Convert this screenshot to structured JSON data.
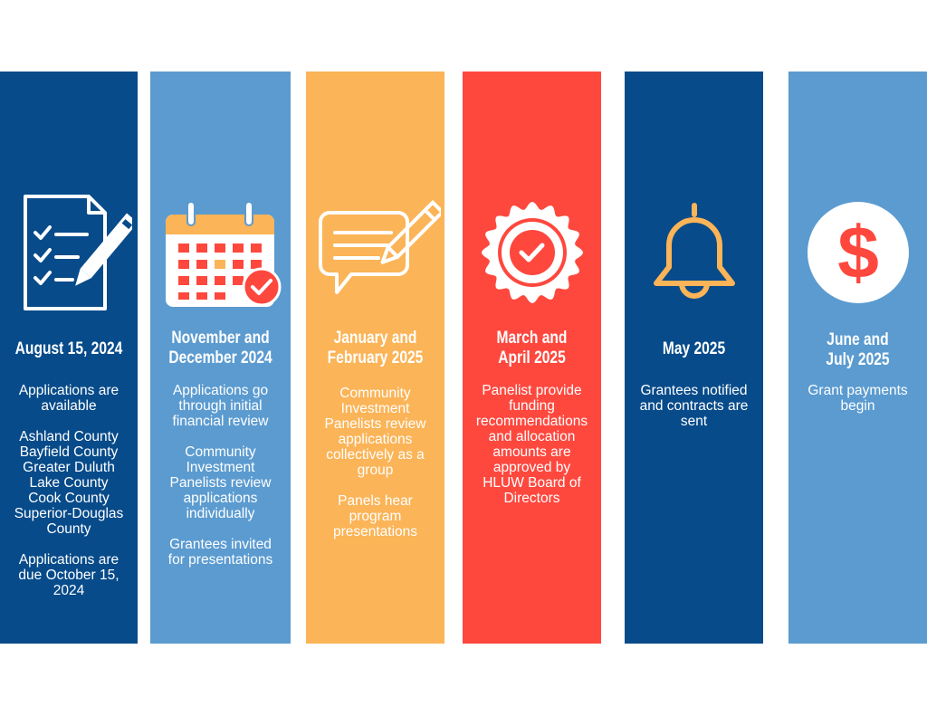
{
  "colors": {
    "dark_blue": "#074b8a",
    "light_blue": "#5b9bd0",
    "yellow": "#fbb457",
    "red": "#fe483e",
    "white": "#ffffff"
  },
  "columns": [
    {
      "icon": "document-checklist-icon",
      "title_lines": [
        "August 15, 2024"
      ],
      "paragraphs": [
        [
          "Applications are",
          "available"
        ],
        [
          "Ashland County",
          "Bayfield County",
          "Greater Duluth",
          "Lake County",
          "Cook County",
          "Superior-Douglas",
          "County"
        ],
        [
          "Applications are",
          "due October 15,",
          "2024"
        ]
      ]
    },
    {
      "icon": "calendar-check-icon",
      "title_lines": [
        "November and",
        "December 2024"
      ],
      "paragraphs": [
        [
          "Applications go",
          "through initial",
          "financial review"
        ],
        [
          "Community",
          "Investment",
          "Panelists review",
          "applications",
          "individually"
        ],
        [
          "Grantees invited",
          "for presentations"
        ]
      ]
    },
    {
      "icon": "chat-pencil-icon",
      "title_lines": [
        "January and",
        "February 2025"
      ],
      "paragraphs": [
        [
          "Community",
          "Investment",
          "Panelists review",
          "applications",
          "collectively as a",
          "group"
        ],
        [
          "Panels hear",
          "program",
          "presentations"
        ]
      ]
    },
    {
      "icon": "approval-seal-icon",
      "title_lines": [
        "March and",
        "April 2025"
      ],
      "paragraphs": [
        [
          "Panelist provide",
          "funding",
          "recommendations",
          "and allocation",
          "amounts are",
          "approved by",
          "HLUW Board of",
          "Directors"
        ]
      ]
    },
    {
      "icon": "bell-icon",
      "title_lines": [
        "May 2025"
      ],
      "paragraphs": [
        [
          "Grantees notified",
          "and contracts are",
          "sent"
        ]
      ]
    },
    {
      "icon": "dollar-coin-icon",
      "title_lines": [
        "June and",
        "July 2025"
      ],
      "paragraphs": [
        [
          "Grant payments",
          "begin"
        ]
      ]
    }
  ]
}
